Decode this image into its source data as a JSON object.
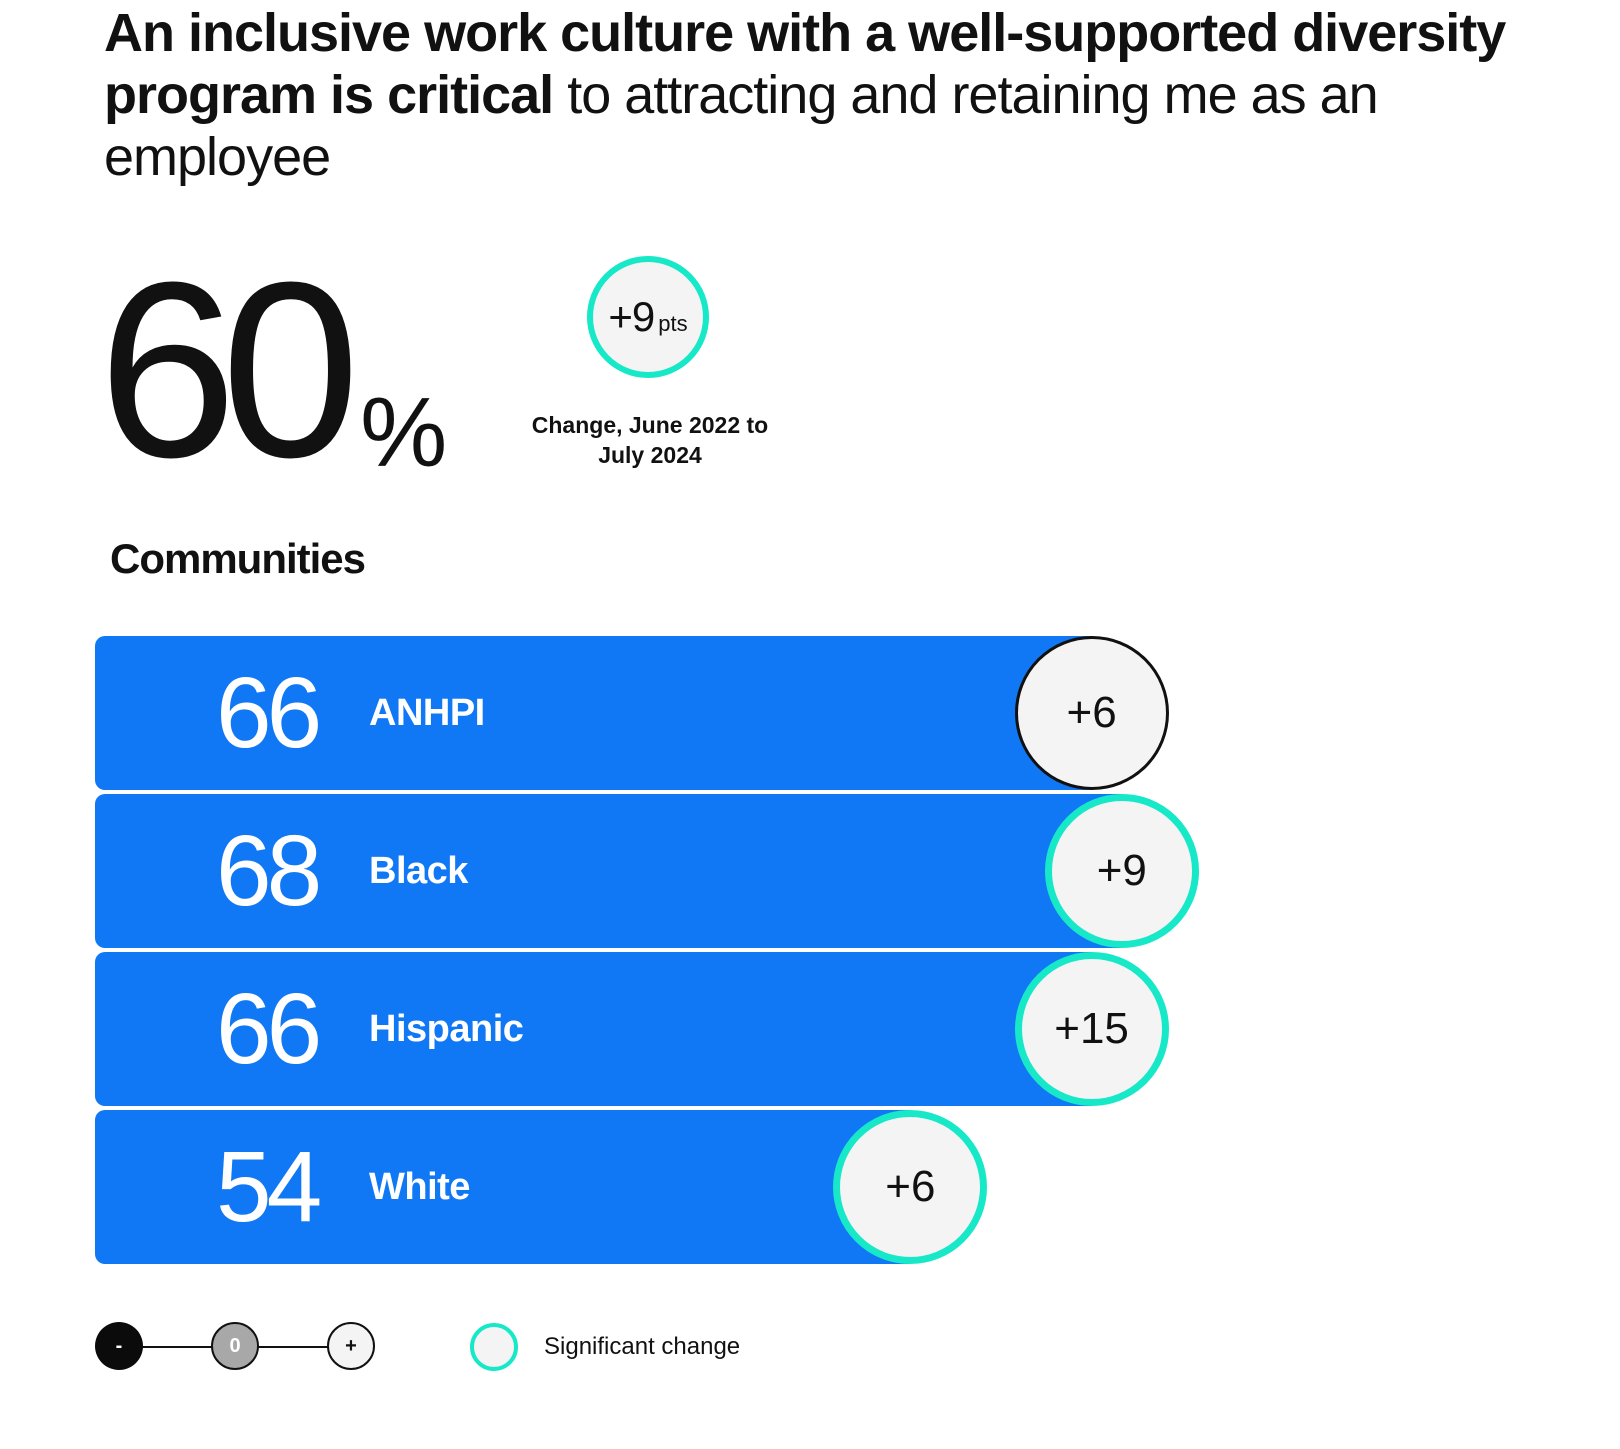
{
  "headline": {
    "bold": "An inclusive work culture with a well-supported diversity program is critical",
    "regular": " to attracting and retaining me as an employee"
  },
  "overall": {
    "value": "60",
    "unit": "%",
    "change": "+9",
    "change_unit": "pts",
    "change_caption": "Change, June 2022 to July 2024"
  },
  "section_title": "Communities",
  "colors": {
    "bar": "#1178f5",
    "significant": "#17e8c8",
    "neutral_border": "#111111",
    "circle_fill": "#f4f4f4"
  },
  "chart_data": {
    "type": "bar",
    "orientation": "horizontal",
    "title": "Communities",
    "unit": "%",
    "xlim": [
      0,
      100
    ],
    "categories": [
      "ANHPI",
      "Black",
      "Hispanic",
      "White"
    ],
    "values": [
      66,
      68,
      66,
      54
    ],
    "changes": [
      "+6",
      "+9",
      "+15",
      "+6"
    ],
    "significant": [
      false,
      true,
      true,
      true
    ]
  },
  "legend": {
    "minus": "-",
    "zero": "0",
    "plus": "+",
    "significant_label": "Significant change"
  }
}
